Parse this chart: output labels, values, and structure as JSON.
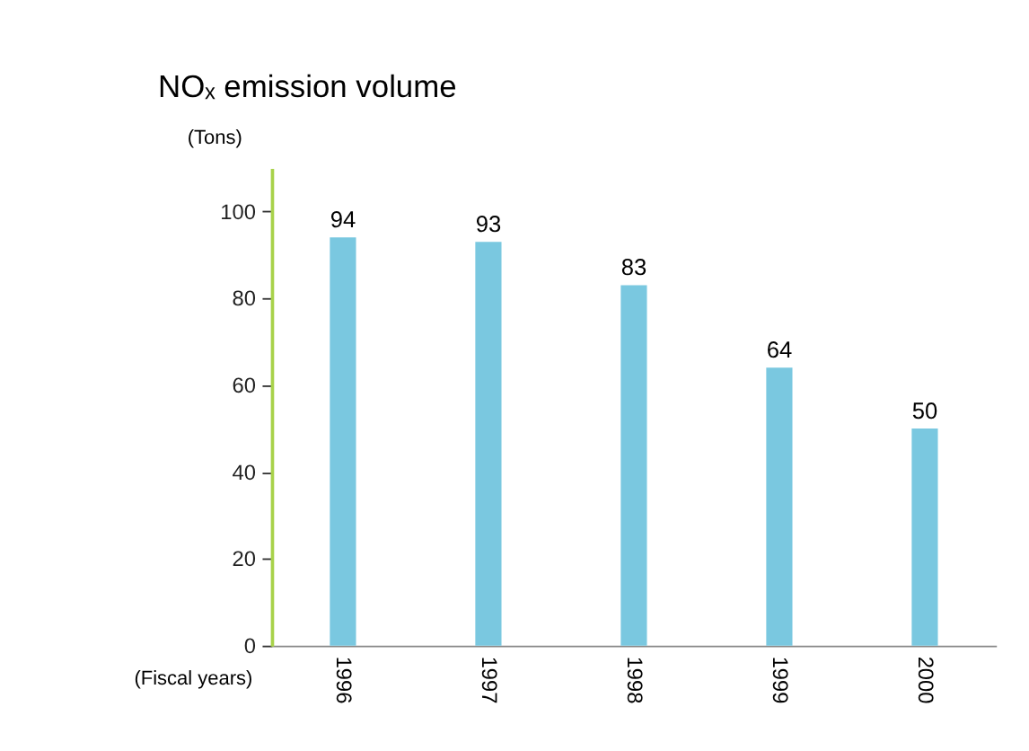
{
  "chart_data": {
    "type": "bar",
    "title": "NOₓ emission volume",
    "ylabel": "(Tons)",
    "xlabel": "(Fiscal years)",
    "categories": [
      "1996",
      "1997",
      "1998",
      "1999",
      "2000"
    ],
    "values": [
      94,
      93,
      83,
      64,
      50
    ],
    "color": "#7ac8e0",
    "ylim": [
      0,
      110
    ],
    "yticks": [
      0,
      20,
      40,
      60,
      80,
      100
    ],
    "grid": false,
    "data_labels": true
  }
}
